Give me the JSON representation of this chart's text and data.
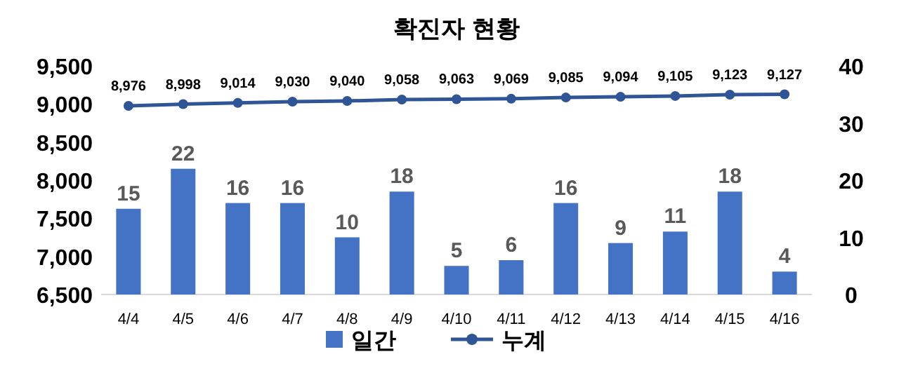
{
  "chart_data": {
    "type": "bar",
    "title": "확진자 현황",
    "categories": [
      "4/4",
      "4/5",
      "4/6",
      "4/7",
      "4/8",
      "4/9",
      "4/10",
      "4/11",
      "4/12",
      "4/13",
      "4/14",
      "4/15",
      "4/16"
    ],
    "series": [
      {
        "name": "일간",
        "axis": "y2",
        "color": "#4472c4",
        "values": [
          15,
          22,
          16,
          16,
          10,
          18,
          5,
          6,
          16,
          9,
          11,
          18,
          4
        ],
        "value_labels": [
          "15",
          "22",
          "16",
          "16",
          "10",
          "18",
          "5",
          "6",
          "16",
          "9",
          "11",
          "18",
          "4"
        ]
      },
      {
        "name": "누계",
        "type": "line",
        "axis": "y",
        "color": "#2f5597",
        "marker": "circle",
        "values": [
          8976,
          8998,
          9014,
          9030,
          9040,
          9058,
          9063,
          9069,
          9085,
          9094,
          9105,
          9123,
          9127
        ],
        "value_labels": [
          "8,976",
          "8,998",
          "9,014",
          "9,030",
          "9,040",
          "9,058",
          "9,063",
          "9,069",
          "9,085",
          "9,094",
          "9,105",
          "9,123",
          "9,127"
        ]
      }
    ],
    "ylim": [
      6500,
      9500
    ],
    "yticks": [
      {
        "value": 6500,
        "label": "6,500"
      },
      {
        "value": 7000,
        "label": "7,000"
      },
      {
        "value": 7500,
        "label": "7,500"
      },
      {
        "value": 8000,
        "label": "8,000"
      },
      {
        "value": 8500,
        "label": "8,500"
      },
      {
        "value": 9000,
        "label": "9,000"
      },
      {
        "value": 9500,
        "label": "9,500"
      }
    ],
    "y2lim": [
      0,
      40
    ],
    "y2ticks": [
      0,
      10,
      20,
      30,
      40
    ],
    "legend": "bottom"
  }
}
